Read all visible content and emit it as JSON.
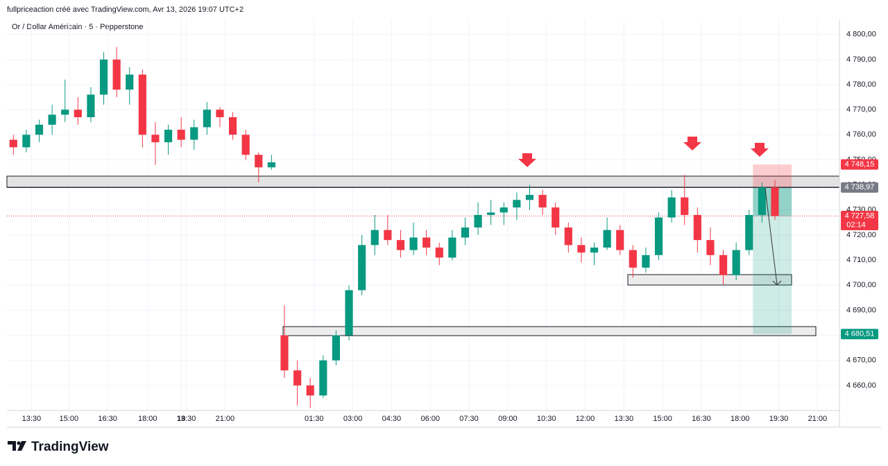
{
  "header": {
    "credit": "fullpriceaction créé avec TradingView.com, Avr 13, 2026 19:07 UTC+2",
    "brand": "TradingView"
  },
  "chart_data": {
    "type": "candlestick",
    "title": "Or / Dollar Américain · 5 · Pepperstone",
    "x": [
      0,
      1,
      2,
      3,
      4,
      5,
      6,
      7,
      8,
      9,
      10,
      11,
      12,
      13,
      14,
      15,
      16,
      17,
      18,
      19,
      20,
      21,
      22,
      23,
      24,
      25,
      26,
      27,
      28,
      29,
      30,
      31,
      32,
      33,
      34,
      35,
      36,
      37,
      38,
      39,
      40,
      41,
      42,
      43,
      44,
      45,
      46,
      47,
      48,
      49,
      50,
      51,
      52,
      53,
      54,
      55,
      56,
      57,
      58,
      59
    ],
    "open": [
      4758,
      4755,
      4760,
      4764,
      4768,
      4770,
      4767,
      4776,
      4790,
      4778,
      4784,
      4760,
      4757,
      4762,
      4758,
      4763,
      4770,
      4767,
      4760,
      4752,
      4747,
      4680,
      4666,
      4660,
      4656,
      4670,
      4680,
      4698,
      4716,
      4722,
      4718,
      4714,
      4719,
      4715,
      4711,
      4719,
      4723,
      4728,
      4729,
      4731,
      4734,
      4736,
      4731,
      4723,
      4716,
      4713,
      4715,
      4722,
      4714,
      4707,
      4712,
      4727,
      4735,
      4728,
      4718,
      4712,
      4704,
      4714,
      4728,
      4739
    ],
    "high": [
      4760,
      4762,
      4766,
      4772,
      4782,
      4775,
      4779,
      4793,
      4795,
      4787,
      4786,
      4765,
      4764,
      4767,
      4766,
      4773,
      4771,
      4769,
      4762,
      4753,
      4752,
      4692,
      4670,
      4663,
      4672,
      4682,
      4700,
      4720,
      4728,
      4728,
      4722,
      4725,
      4722,
      4717,
      4722,
      4727,
      4733,
      4734,
      4733,
      4737,
      4740,
      4738,
      4733,
      4725,
      4719,
      4717,
      4727,
      4724,
      4716,
      4715,
      4729,
      4738,
      4744,
      4731,
      4723,
      4714,
      4717,
      4730,
      4741,
      4742
    ],
    "low": [
      4752,
      4753,
      4757,
      4760,
      4765,
      4764,
      4765,
      4772,
      4775,
      4772,
      4755,
      4748,
      4752,
      4755,
      4754,
      4760,
      4763,
      4758,
      4750,
      4741,
      4746,
      4663,
      4652,
      4651,
      4655,
      4668,
      4678,
      4696,
      4712,
      4716,
      4711,
      4712,
      4712,
      4708,
      4710,
      4716,
      4720,
      4724,
      4724,
      4726,
      4730,
      4728,
      4720,
      4713,
      4709,
      4708,
      4714,
      4712,
      4703,
      4705,
      4710,
      4725,
      4724,
      4713,
      4708,
      4700,
      4702,
      4712,
      4725,
      4726
    ],
    "close": [
      4755,
      4760,
      4764,
      4768,
      4770,
      4767,
      4776,
      4790,
      4778,
      4784,
      4760,
      4757,
      4762,
      4758,
      4763,
      4770,
      4767,
      4760,
      4752,
      4747,
      4749,
      4666,
      4660,
      4656,
      4670,
      4680,
      4698,
      4716,
      4722,
      4718,
      4714,
      4719,
      4715,
      4711,
      4719,
      4723,
      4728,
      4729,
      4731,
      4734,
      4736,
      4731,
      4723,
      4716,
      4713,
      4715,
      4722,
      4714,
      4707,
      4712,
      4727,
      4735,
      4728,
      4718,
      4712,
      4704,
      4714,
      4728,
      4739,
      4727.58
    ],
    "up_color": "#089981",
    "down_color": "#f23645",
    "xlim": [
      -0.5,
      64.0
    ],
    "xticks": [
      {
        "value": 1.4,
        "label": "13:30"
      },
      {
        "value": 4.3,
        "label": "15:00"
      },
      {
        "value": 7.3,
        "label": "16:30"
      },
      {
        "value": 10.4,
        "label": "18:00"
      },
      {
        "value": 13.4,
        "label": "19:30"
      },
      {
        "value": 16.4,
        "label": "21:00"
      },
      13,
      {
        "value": 23.3,
        "label": "01:30"
      },
      {
        "value": 26.3,
        "label": "03:00"
      },
      {
        "value": 29.3,
        "label": "04:30"
      },
      {
        "value": 32.3,
        "label": "06:00"
      },
      {
        "value": 35.3,
        "label": "07:30"
      },
      {
        "value": 38.3,
        "label": "09:00"
      },
      {
        "value": 41.3,
        "label": "10:30"
      },
      {
        "value": 44.3,
        "label": "12:00"
      },
      {
        "value": 47.3,
        "label": "13:30"
      },
      {
        "value": 50.3,
        "label": "15:00"
      },
      {
        "value": 53.3,
        "label": "16:30"
      },
      {
        "value": 56.3,
        "label": "18:00"
      },
      {
        "value": 59.3,
        "label": "19:30"
      },
      {
        "value": 62.3,
        "label": "21:00"
      }
    ],
    "ylim": [
      4650,
      4806
    ],
    "yticks": [
      {
        "value": 4660,
        "label": "4 660,00"
      },
      {
        "value": 4670,
        "label": "4 670,00"
      },
      {
        "value": 4680,
        "label": "4 680,00"
      },
      {
        "value": 4690,
        "label": "4 690,00"
      },
      {
        "value": 4700,
        "label": "4 700,00"
      },
      {
        "value": 4710,
        "label": "4 710,00"
      },
      {
        "value": 4720,
        "label": "4 720,00"
      },
      {
        "value": 4730,
        "label": "4 730,00"
      },
      {
        "value": 4740,
        "label": "4 740,00"
      },
      {
        "value": 4750,
        "label": "4 750,00"
      },
      {
        "value": 4760,
        "label": "4 760,00"
      },
      {
        "value": 4770,
        "label": "4 770,00"
      },
      {
        "value": 4780,
        "label": "4 780,00"
      },
      {
        "value": 4790,
        "label": "4 790,00"
      },
      {
        "value": 4800,
        "label": "4 800,00"
      }
    ],
    "grid": true,
    "position": {
      "stop": {
        "value": 4748.15,
        "label": "4 748,15",
        "color": "#f23645"
      },
      "entry": {
        "value": 4738.97,
        "label": "4 738,97",
        "color": "#787b86"
      },
      "target": {
        "value": 4680.51,
        "label": "4 680,51",
        "color": "#089981"
      }
    },
    "last_price": {
      "value": 4727.58,
      "label": "4 727,58",
      "countdown": "02:14",
      "color": "#f23645"
    }
  }
}
